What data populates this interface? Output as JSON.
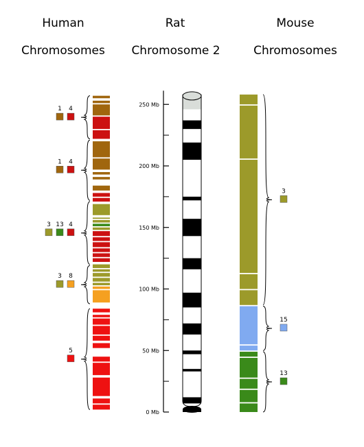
{
  "titles": {
    "human": [
      "Human",
      "Chromosomes"
    ],
    "rat": [
      "Rat",
      "Chromosome 2"
    ],
    "mouse": [
      "Mouse",
      "Chromosomes"
    ]
  },
  "axis": {
    "unit": "Mb",
    "ticks": [
      {
        "mb": 250,
        "label": "250 Mb"
      },
      {
        "mb": 200,
        "label": "200 Mb"
      },
      {
        "mb": 150,
        "label": "150 Mb"
      },
      {
        "mb": 100,
        "label": "100 Mb"
      },
      {
        "mb": 50,
        "label": "50 Mb"
      },
      {
        "mb": 0,
        "label": "0 Mb"
      }
    ],
    "minor_ticks": [
      25,
      75,
      125,
      175,
      225
    ],
    "range": [
      0,
      260
    ]
  },
  "colors": {
    "human_chr1": "#a0660e",
    "human_chr4": "#cc1111",
    "human_chr3": "#9c9a2a",
    "human_chr13": "#3a8a1a",
    "human_chr8": "#f5a020",
    "human_chr5": "#ee1111",
    "mouse_chr3": "#9c9a2a",
    "mouse_chr15": "#80aaf0",
    "mouse_chr13": "#3a8a1a",
    "band_dark": "#000000",
    "band_light": "#ffffff",
    "centromere": "#d9ddd9"
  },
  "human": {
    "groups": [
      {
        "mb_from": 222,
        "mb_to": 257,
        "labels": [
          "1",
          "4"
        ],
        "colors": [
          "human_chr1",
          "human_chr4"
        ]
      },
      {
        "mb_from": 172,
        "mb_to": 221,
        "labels": [
          "1",
          "4"
        ],
        "colors": [
          "human_chr1",
          "human_chr4"
        ]
      },
      {
        "mb_from": 120,
        "mb_to": 171,
        "labels": [
          "3",
          "13",
          "4"
        ],
        "colors": [
          "human_chr3",
          "human_chr13",
          "human_chr4"
        ]
      },
      {
        "mb_from": 88,
        "mb_to": 119,
        "labels": [
          "3",
          "8"
        ],
        "colors": [
          "human_chr3",
          "human_chr8"
        ]
      },
      {
        "mb_from": 2,
        "mb_to": 84,
        "labels": [
          "5"
        ],
        "colors": [
          "human_chr5"
        ]
      }
    ],
    "segments": [
      {
        "from": 255,
        "to": 257,
        "c": "human_chr1"
      },
      {
        "from": 251,
        "to": 253,
        "c": "human_chr1"
      },
      {
        "from": 241,
        "to": 250,
        "c": "human_chr1"
      },
      {
        "from": 230,
        "to": 240,
        "c": "human_chr4"
      },
      {
        "from": 222,
        "to": 229,
        "c": "human_chr4"
      },
      {
        "from": 207,
        "to": 220,
        "c": "human_chr1"
      },
      {
        "from": 197,
        "to": 206,
        "c": "human_chr1"
      },
      {
        "from": 193,
        "to": 195,
        "c": "human_chr1"
      },
      {
        "from": 189,
        "to": 191,
        "c": "human_chr1"
      },
      {
        "from": 180,
        "to": 184,
        "c": "human_chr1"
      },
      {
        "from": 175,
        "to": 178,
        "c": "human_chr4"
      },
      {
        "from": 171,
        "to": 174,
        "c": "human_chr4"
      },
      {
        "from": 160,
        "to": 169,
        "c": "human_chr3"
      },
      {
        "from": 157,
        "to": 158,
        "c": "human_chr3"
      },
      {
        "from": 154,
        "to": 156,
        "c": "human_chr3"
      },
      {
        "from": 151,
        "to": 153,
        "c": "human_chr13"
      },
      {
        "from": 148,
        "to": 150,
        "c": "human_chr3"
      },
      {
        "from": 143,
        "to": 147,
        "c": "human_chr4"
      },
      {
        "from": 139,
        "to": 142,
        "c": "human_chr4"
      },
      {
        "from": 134,
        "to": 138,
        "c": "human_chr4"
      },
      {
        "from": 130,
        "to": 133,
        "c": "human_chr4"
      },
      {
        "from": 126,
        "to": 129,
        "c": "human_chr4"
      },
      {
        "from": 122,
        "to": 125,
        "c": "human_chr4"
      },
      {
        "from": 117,
        "to": 120,
        "c": "human_chr3"
      },
      {
        "from": 114,
        "to": 116,
        "c": "human_chr3"
      },
      {
        "from": 110,
        "to": 113,
        "c": "human_chr3"
      },
      {
        "from": 106,
        "to": 109,
        "c": "human_chr3"
      },
      {
        "from": 103,
        "to": 105,
        "c": "human_chr3"
      },
      {
        "from": 100,
        "to": 102,
        "c": "human_chr8"
      },
      {
        "from": 89,
        "to": 99,
        "c": "human_chr8"
      },
      {
        "from": 81,
        "to": 84,
        "c": "human_chr5"
      },
      {
        "from": 77,
        "to": 79,
        "c": "human_chr5"
      },
      {
        "from": 71,
        "to": 76,
        "c": "human_chr5"
      },
      {
        "from": 63,
        "to": 70,
        "c": "human_chr5"
      },
      {
        "from": 58,
        "to": 62,
        "c": "human_chr5"
      },
      {
        "from": 52,
        "to": 56,
        "c": "human_chr5"
      },
      {
        "from": 41,
        "to": 45,
        "c": "human_chr5"
      },
      {
        "from": 30,
        "to": 40,
        "c": "human_chr5"
      },
      {
        "from": 13,
        "to": 28,
        "c": "human_chr5"
      },
      {
        "from": 7,
        "to": 11,
        "c": "human_chr5"
      },
      {
        "from": 2,
        "to": 6,
        "c": "human_chr5"
      }
    ]
  },
  "rat": {
    "length": 258,
    "centromere": {
      "from": 246,
      "to": 257
    },
    "bands": [
      {
        "from": 230,
        "to": 237,
        "c": "band_dark"
      },
      {
        "from": 205,
        "to": 219,
        "c": "band_dark"
      },
      {
        "from": 172,
        "to": 175,
        "c": "band_dark"
      },
      {
        "from": 143,
        "to": 157,
        "c": "band_dark"
      },
      {
        "from": 116,
        "to": 125,
        "c": "band_dark"
      },
      {
        "from": 85,
        "to": 97,
        "c": "band_dark"
      },
      {
        "from": 63,
        "to": 72,
        "c": "band_dark"
      },
      {
        "from": 47,
        "to": 50,
        "c": "band_dark"
      },
      {
        "from": 33,
        "to": 35,
        "c": "band_dark"
      },
      {
        "from": 7,
        "to": 12,
        "c": "band_dark"
      },
      {
        "from": 0,
        "to": 2,
        "c": "band_dark"
      }
    ]
  },
  "mouse": {
    "groups": [
      {
        "mb_from": 87,
        "mb_to": 258,
        "label": "3",
        "color": "mouse_chr3"
      },
      {
        "mb_from": 50,
        "mb_to": 86,
        "label": "15",
        "color": "mouse_chr15"
      },
      {
        "mb_from": 0,
        "mb_to": 49,
        "label": "13",
        "color": "mouse_chr13"
      }
    ],
    "segments": [
      {
        "from": 250,
        "to": 258,
        "c": "mouse_chr3"
      },
      {
        "from": 206,
        "to": 249,
        "c": "mouse_chr3"
      },
      {
        "from": 113,
        "to": 205,
        "c": "mouse_chr3"
      },
      {
        "from": 100,
        "to": 112,
        "c": "mouse_chr3"
      },
      {
        "from": 87,
        "to": 99,
        "c": "mouse_chr3"
      },
      {
        "from": 55,
        "to": 86,
        "c": "mouse_chr15"
      },
      {
        "from": 50,
        "to": 54,
        "c": "mouse_chr15"
      },
      {
        "from": 45,
        "to": 49,
        "c": "mouse_chr13"
      },
      {
        "from": 28,
        "to": 44,
        "c": "mouse_chr13"
      },
      {
        "from": 19,
        "to": 27,
        "c": "mouse_chr13"
      },
      {
        "from": 8,
        "to": 18,
        "c": "mouse_chr13"
      },
      {
        "from": 0,
        "to": 7,
        "c": "mouse_chr13"
      }
    ]
  }
}
